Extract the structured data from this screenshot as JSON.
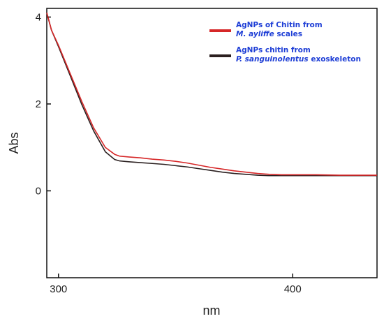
{
  "chart_data": {
    "type": "line",
    "xlabel": "nm",
    "ylabel": "Abs",
    "xlim": [
      295,
      436
    ],
    "ylim": [
      -2.0,
      4.2
    ],
    "xticks": [
      300,
      400
    ],
    "yticks": [
      0,
      2,
      4
    ],
    "grid": false,
    "legend_position": "top-right",
    "series": [
      {
        "name": "AgNPs of Chitin from M. ayliffe scales",
        "name_parts": [
          {
            "text": "AgNPs of Chitin from",
            "style": "bold"
          },
          {
            "text": "M. ayliffe",
            "style": "bold-italic"
          },
          {
            "text": " scales",
            "style": "bold"
          }
        ],
        "color": "#d62728",
        "x": [
          295,
          297,
          300,
          305,
          310,
          315,
          320,
          324,
          326,
          328,
          330,
          335,
          340,
          345,
          350,
          355,
          360,
          365,
          370,
          375,
          380,
          385,
          390,
          395,
          400,
          410,
          420,
          436
        ],
        "y": [
          4.1,
          3.7,
          3.35,
          2.7,
          2.05,
          1.45,
          1.0,
          0.84,
          0.8,
          0.79,
          0.78,
          0.76,
          0.73,
          0.71,
          0.68,
          0.64,
          0.59,
          0.54,
          0.5,
          0.46,
          0.43,
          0.4,
          0.38,
          0.37,
          0.37,
          0.37,
          0.36,
          0.36
        ]
      },
      {
        "name": "AgNPs chitin from P. sanguinolentus exoskeleton",
        "name_parts": [
          {
            "text": "AgNPs chitin from",
            "style": "bold"
          },
          {
            "text": "P. sanguinolentus",
            "style": "bold-italic"
          },
          {
            "text": " exoskeleton",
            "style": "bold"
          }
        ],
        "color": "#2b2020",
        "x": [
          295,
          297,
          300,
          305,
          310,
          315,
          320,
          324,
          326,
          328,
          330,
          335,
          340,
          345,
          350,
          355,
          360,
          365,
          370,
          375,
          380,
          385,
          390,
          395,
          400,
          410,
          420,
          436
        ],
        "y": [
          4.1,
          3.7,
          3.32,
          2.65,
          1.98,
          1.38,
          0.9,
          0.72,
          0.69,
          0.68,
          0.67,
          0.65,
          0.63,
          0.61,
          0.58,
          0.55,
          0.51,
          0.47,
          0.43,
          0.4,
          0.38,
          0.36,
          0.35,
          0.35,
          0.35,
          0.35,
          0.35,
          0.35
        ]
      }
    ]
  }
}
